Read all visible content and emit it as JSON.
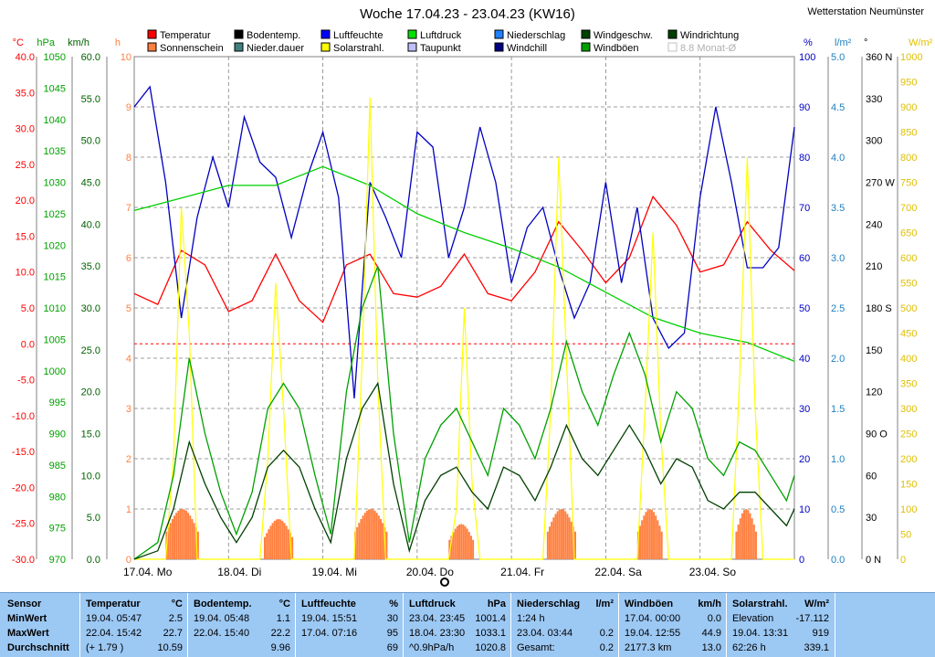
{
  "chart_data": {
    "type": "line",
    "title": "Woche 17.04.23 - 23.04.23 (KW16)",
    "station": "Wetterstation Neumünster",
    "x_labels": [
      "17.04.  Mo",
      "18.04.  Di",
      "19.04.  Mi",
      "20.04.  Do",
      "21.04.  Fr",
      "22.04.  Sa",
      "23.04.  So"
    ],
    "axes_left": [
      {
        "unit": "°C",
        "color": "#ff0000",
        "ticks": [
          "40.0",
          "35.0",
          "30.0",
          "25.0",
          "20.0",
          "15.0",
          "10.0",
          "5.0",
          "0.0",
          "-5.0",
          "-10.0",
          "-15.0",
          "-20.0",
          "-25.0",
          "-30.0"
        ]
      },
      {
        "unit": "hPa",
        "color": "#00a000",
        "ticks": [
          "1050",
          "1045",
          "1040",
          "1035",
          "1030",
          "1025",
          "1020",
          "1015",
          "1010",
          "1005",
          "1000",
          "995",
          "990",
          "985",
          "980",
          "975",
          "970"
        ]
      },
      {
        "unit": "km/h",
        "color": "#006000",
        "ticks": [
          "60.0",
          "55.0",
          "50.0",
          "45.0",
          "40.0",
          "35.0",
          "30.0",
          "25.0",
          "20.0",
          "15.0",
          "10.0",
          "5.0",
          "0.0"
        ]
      },
      {
        "unit": "h",
        "color": "#ff8040",
        "ticks": [
          "10",
          "9",
          "8",
          "7",
          "6",
          "5",
          "4",
          "3",
          "2",
          "1",
          "0"
        ]
      }
    ],
    "axes_right": [
      {
        "unit": "%",
        "color": "#0000c0",
        "ticks": [
          "100",
          "90",
          "80",
          "70",
          "60",
          "50",
          "40",
          "30",
          "20",
          "10",
          "0"
        ]
      },
      {
        "unit": "l/m²",
        "color": "#2080c0",
        "ticks": [
          "5.0",
          "4.5",
          "4.0",
          "3.5",
          "3.0",
          "2.5",
          "2.0",
          "1.5",
          "1.0",
          "0.5",
          "0.0"
        ]
      },
      {
        "unit": "°",
        "color": "#000000",
        "ticks": [
          "360 N",
          "330",
          "300",
          "270 W",
          "240",
          "210",
          "180 S",
          "150",
          "120",
          "90  O",
          "60",
          "30",
          "0   N"
        ]
      },
      {
        "unit": "W/m²",
        "color": "#e0c000",
        "ticks": [
          "1000",
          "950",
          "900",
          "850",
          "800",
          "750",
          "700",
          "650",
          "600",
          "550",
          "500",
          "450",
          "400",
          "350",
          "300",
          "250",
          "200",
          "150",
          "100",
          "50",
          "0"
        ]
      }
    ],
    "legend": [
      {
        "name": "Temperatur",
        "color": "#ff0000"
      },
      {
        "name": "Bodentemp.",
        "color": "#000000"
      },
      {
        "name": "Luftfeuchte",
        "color": "#0000ff"
      },
      {
        "name": "Luftdruck",
        "color": "#00e000"
      },
      {
        "name": "Niederschlag",
        "color": "#2080ff"
      },
      {
        "name": "Windgeschw.",
        "color": "#004000"
      },
      {
        "name": "Windrichtung",
        "color": "#004000"
      },
      {
        "name": "Sonnenschein",
        "color": "#ff8040"
      },
      {
        "name": "Nieder.dauer",
        "color": "#408080"
      },
      {
        "name": "Solarstrahl.",
        "color": "#ffff00"
      },
      {
        "name": "Taupunkt",
        "color": "#c0c0ff"
      },
      {
        "name": "Windchill",
        "color": "#000080"
      },
      {
        "name": "Windböen",
        "color": "#00a000"
      },
      {
        "name": "8.8 Monat-Ø",
        "color": "#c0c0c0"
      }
    ],
    "series": [
      {
        "name": "Temperatur",
        "unit": "°C",
        "x_hours": [
          0,
          6,
          12,
          18,
          24,
          30,
          36,
          42,
          48,
          54,
          60,
          66,
          72,
          78,
          84,
          90,
          96,
          102,
          108,
          114,
          120,
          126,
          132,
          138,
          144,
          150,
          156,
          162,
          168
        ],
        "values": [
          7.0,
          5.5,
          13.0,
          11.0,
          4.5,
          6.0,
          12.5,
          6.0,
          3.0,
          11.0,
          12.5,
          7.0,
          6.5,
          8.0,
          12.5,
          7.0,
          6.0,
          10.0,
          17.0,
          13.0,
          8.5,
          12.0,
          20.5,
          16.5,
          10.0,
          11.0,
          17.0,
          13.0,
          10.2
        ]
      },
      {
        "name": "Luftfeuchte",
        "unit": "%",
        "x_hours": [
          0,
          4,
          8,
          12,
          16,
          20,
          24,
          28,
          32,
          36,
          40,
          44,
          48,
          52,
          56,
          60,
          64,
          68,
          72,
          76,
          80,
          84,
          88,
          92,
          96,
          100,
          104,
          108,
          112,
          116,
          120,
          124,
          128,
          132,
          136,
          140,
          144,
          148,
          152,
          156,
          160,
          164,
          168
        ],
        "values": [
          90,
          94,
          75,
          48,
          68,
          80,
          70,
          88,
          79,
          76,
          64,
          76,
          85,
          72,
          32,
          75,
          68,
          60,
          85,
          82,
          60,
          70,
          86,
          75,
          55,
          66,
          70,
          58,
          48,
          55,
          75,
          55,
          70,
          48,
          42,
          45,
          72,
          90,
          75,
          58,
          58,
          62,
          86
        ]
      },
      {
        "name": "Luftdruck",
        "unit": "hPa",
        "x_hours": [
          0,
          12,
          24,
          36,
          48,
          60,
          72,
          84,
          96,
          108,
          120,
          132,
          144,
          156,
          168
        ],
        "values": [
          1025.5,
          1027.5,
          1029.5,
          1029.5,
          1032.5,
          1029.5,
          1025.0,
          1022.0,
          1019.5,
          1016.5,
          1012.5,
          1008.5,
          1006.0,
          1004.5,
          1001.5
        ]
      },
      {
        "name": "Solarstrahl.",
        "unit": "W/m²",
        "x_hours": [
          0,
          8,
          10,
          12,
          14,
          16,
          24,
          32,
          34,
          36,
          38,
          40,
          48,
          56,
          58,
          60,
          62,
          64,
          72,
          80,
          82,
          84,
          86,
          88,
          96,
          104,
          106,
          108,
          110,
          112,
          120,
          128,
          130,
          132,
          134,
          136,
          144,
          152,
          154,
          156,
          158,
          160,
          168
        ],
        "values": [
          0,
          0,
          200,
          700,
          450,
          0,
          0,
          0,
          200,
          550,
          300,
          0,
          0,
          0,
          400,
          919,
          350,
          0,
          0,
          0,
          100,
          500,
          150,
          0,
          0,
          0,
          300,
          800,
          400,
          0,
          0,
          0,
          300,
          650,
          250,
          0,
          0,
          0,
          350,
          800,
          300,
          0,
          0
        ]
      },
      {
        "name": "Windböen",
        "unit": "km/h",
        "x_hours": [
          0,
          6,
          10,
          14,
          18,
          22,
          26,
          30,
          34,
          38,
          42,
          46,
          50,
          54,
          58,
          62,
          66,
          70,
          74,
          78,
          82,
          86,
          90,
          94,
          98,
          102,
          106,
          110,
          114,
          118,
          122,
          126,
          130,
          134,
          138,
          142,
          146,
          150,
          154,
          158,
          162,
          166,
          168
        ],
        "values": [
          0,
          2,
          10,
          24,
          15,
          8,
          3,
          8,
          18,
          21,
          18,
          10,
          3,
          20,
          30,
          35,
          15,
          2,
          12,
          16,
          18,
          14,
          10,
          18,
          16,
          12,
          18,
          26,
          20,
          16,
          22,
          27,
          22,
          14,
          20,
          18,
          12,
          10,
          14,
          13,
          10,
          7,
          10
        ]
      },
      {
        "name": "Windgeschw.",
        "unit": "km/h",
        "x_hours": [
          0,
          6,
          10,
          14,
          18,
          22,
          26,
          30,
          34,
          38,
          42,
          46,
          50,
          54,
          58,
          62,
          66,
          70,
          74,
          78,
          82,
          86,
          90,
          94,
          98,
          102,
          106,
          110,
          114,
          118,
          122,
          126,
          130,
          134,
          138,
          142,
          146,
          150,
          154,
          158,
          162,
          166,
          168
        ],
        "values": [
          0,
          1,
          6,
          14,
          9,
          5,
          2,
          5,
          11,
          13,
          11,
          6,
          2,
          12,
          18,
          21,
          9,
          1,
          7,
          10,
          11,
          8,
          6,
          11,
          10,
          7,
          11,
          16,
          12,
          10,
          13,
          16,
          13,
          9,
          12,
          11,
          7,
          6,
          8,
          8,
          6,
          4,
          6
        ]
      }
    ],
    "sunshine_bars": {
      "unit": "h",
      "days": [
        {
          "start": 8,
          "end": 16,
          "max": 1.0
        },
        {
          "start": 33,
          "end": 40,
          "max": 0.8
        },
        {
          "start": 56,
          "end": 64,
          "max": 1.0
        },
        {
          "start": 80,
          "end": 86,
          "max": 0.7
        },
        {
          "start": 105,
          "end": 112,
          "max": 1.0
        },
        {
          "start": 128,
          "end": 134,
          "max": 1.0
        },
        {
          "start": 153,
          "end": 158,
          "max": 1.0
        }
      ]
    },
    "freezing_line": 0.0
  },
  "table": {
    "cols": [
      {
        "head": "Sensor",
        "unit": "",
        "rows": [
          "MinWert",
          "MaxWert",
          "Durchschnitt"
        ],
        "vals": [
          "",
          "",
          ""
        ]
      },
      {
        "head": "Temperatur",
        "unit": "°C",
        "rows": [
          "19.04.  05:47",
          "22.04.  15:42",
          "(+ 1.79 )"
        ],
        "vals": [
          "2.5",
          "22.7",
          "10.59"
        ]
      },
      {
        "head": "Bodentemp.",
        "unit": "°C",
        "rows": [
          "19.04.  05:48",
          "22.04.  15:40",
          ""
        ],
        "vals": [
          "1.1",
          "22.2",
          "9.96"
        ]
      },
      {
        "head": "Luftfeuchte",
        "unit": "%",
        "rows": [
          "19.04.  15:51",
          "17.04.  07:16",
          ""
        ],
        "vals": [
          "30",
          "95",
          "69"
        ]
      },
      {
        "head": "Luftdruck",
        "unit": "hPa",
        "rows": [
          "23.04.  23:45",
          "18.04.  23:30",
          "^0.9hPa/h"
        ],
        "vals": [
          "1001.4",
          "1033.1",
          "1020.8"
        ]
      },
      {
        "head": "Niederschlag",
        "unit": "l/m²",
        "rows": [
          "1:24 h",
          "23.04.  03:44",
          "Gesamt:"
        ],
        "vals": [
          "",
          "0.2",
          "0.2"
        ]
      },
      {
        "head": "Windböen",
        "unit": "km/h",
        "rows": [
          "17.04.  00:00",
          "19.04.  12:55",
          "2177.3 km"
        ],
        "vals": [
          "0.0",
          "44.9",
          "13.0"
        ]
      },
      {
        "head": "Solarstrahl.",
        "unit": "W/m²",
        "rows": [
          "Elevation",
          "19.04.  13:31",
          "62:26 h"
        ],
        "vals": [
          "-17.112",
          "919",
          "339.1"
        ]
      }
    ]
  }
}
